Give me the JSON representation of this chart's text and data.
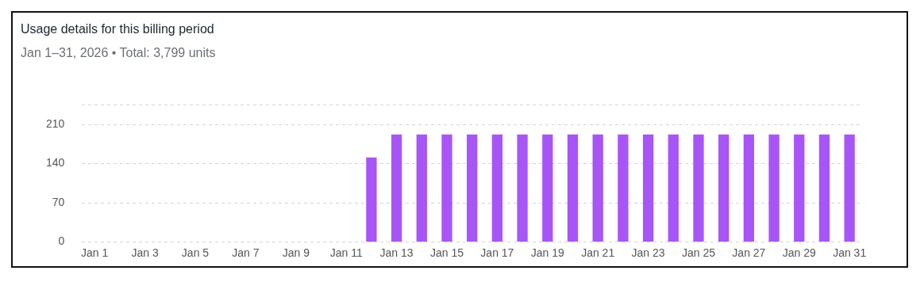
{
  "chart_data": {
    "type": "bar",
    "title": "Usage details for this billing period",
    "subtitle": "Jan 1–31, 2026 • Total: 3,799 units",
    "categories": [
      "Jan 1",
      null,
      "Jan 3",
      null,
      "Jan 5",
      null,
      "Jan 7",
      null,
      "Jan 9",
      null,
      "Jan 11",
      null,
      "Jan 13",
      null,
      "Jan 15",
      null,
      "Jan 17",
      null,
      "Jan 19",
      null,
      "Jan 21",
      null,
      "Jan 23",
      null,
      "Jan 25",
      null,
      "Jan 27",
      null,
      "Jan 29",
      null,
      "Jan 31"
    ],
    "values": [
      0,
      0,
      0,
      0,
      0,
      0,
      0,
      0,
      0,
      0,
      0,
      151,
      192,
      192,
      192,
      192,
      192,
      192,
      192,
      192,
      192,
      192,
      192,
      192,
      192,
      192,
      192,
      192,
      192,
      192,
      192
    ],
    "color": "#a855f7",
    "ylim": [
      0,
      245
    ],
    "yticks": [
      0,
      70,
      140,
      210,
      {
        "value": 245,
        "label": null
      }
    ],
    "grid": "y",
    "legend": false
  }
}
